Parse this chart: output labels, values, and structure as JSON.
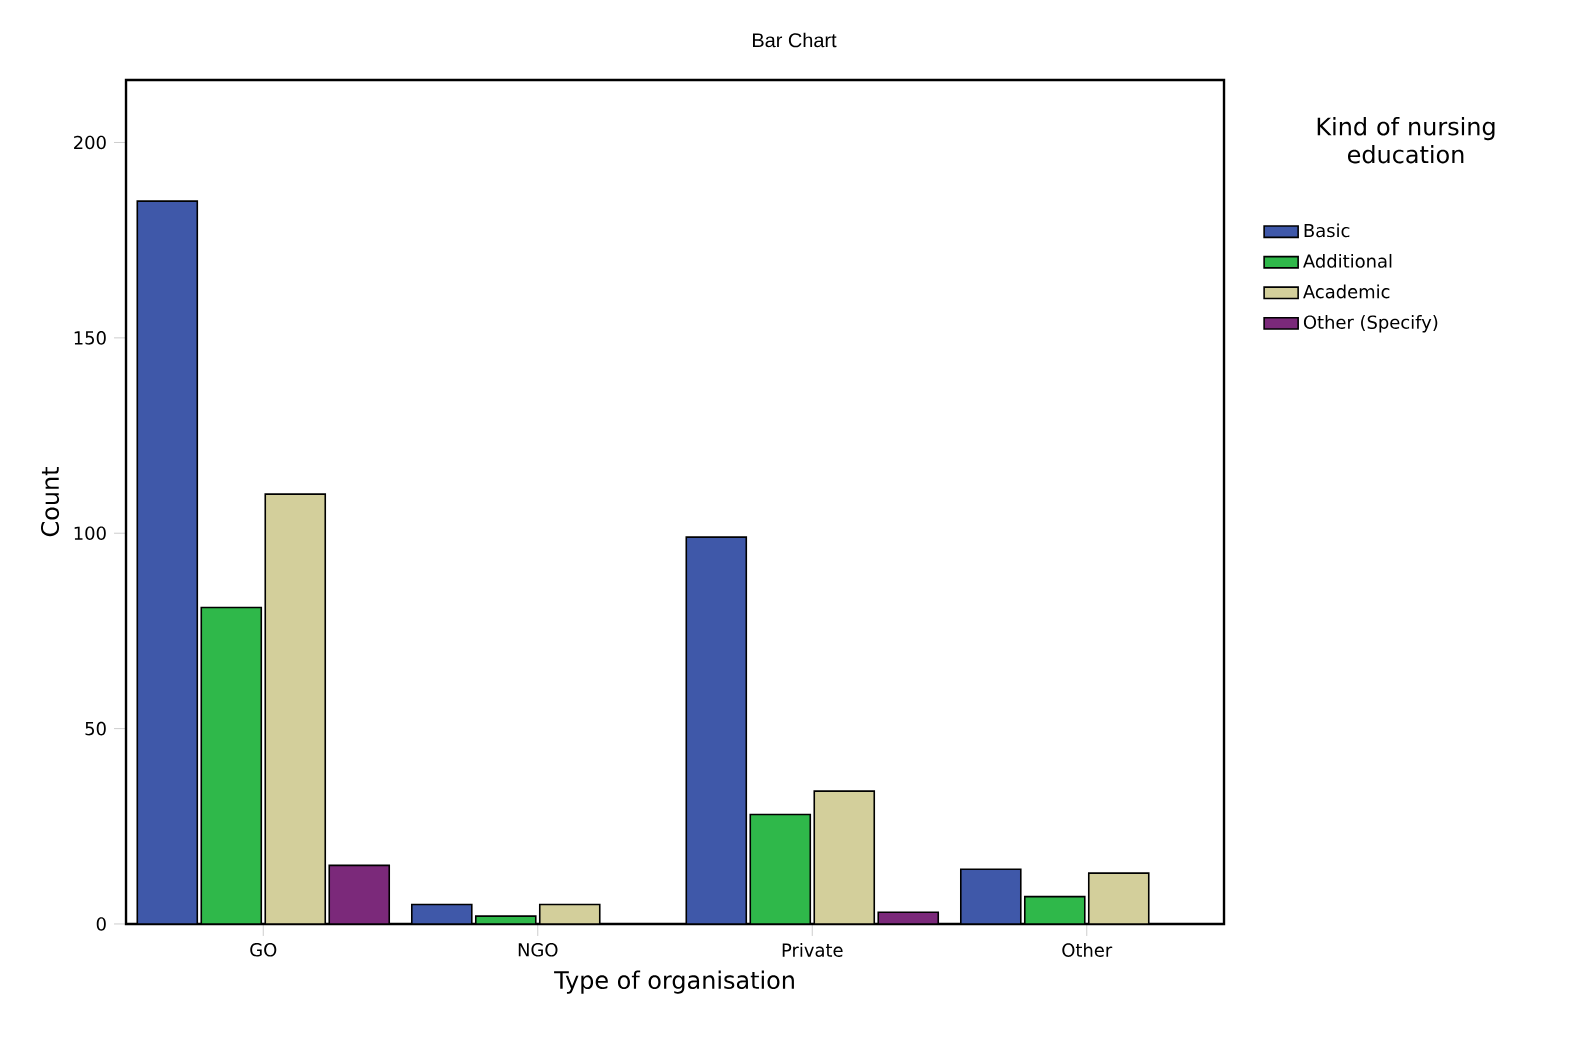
{
  "chart_data": {
    "type": "bar",
    "title": "Bar Chart",
    "xlabel": "Type of organisation",
    "ylabel": "Count",
    "legend_title": "Kind of nursing education",
    "categories": [
      "GO",
      "NGO",
      "Private",
      "Other"
    ],
    "series": [
      {
        "name": "Basic",
        "color": "#3f58a9",
        "values": [
          185,
          5,
          99,
          14
        ]
      },
      {
        "name": "Additional",
        "color": "#2fb84a",
        "values": [
          81,
          2,
          28,
          7
        ]
      },
      {
        "name": "Academic",
        "color": "#d3cf9b",
        "values": [
          110,
          5,
          34,
          13
        ]
      },
      {
        "name": "Other (Specify)",
        "color": "#7b297a",
        "values": [
          15,
          null,
          3,
          null
        ]
      }
    ],
    "ylim": [
      0,
      216
    ],
    "yticks": [
      0,
      50,
      100,
      150,
      200
    ],
    "grid": false,
    "legend": "right"
  }
}
